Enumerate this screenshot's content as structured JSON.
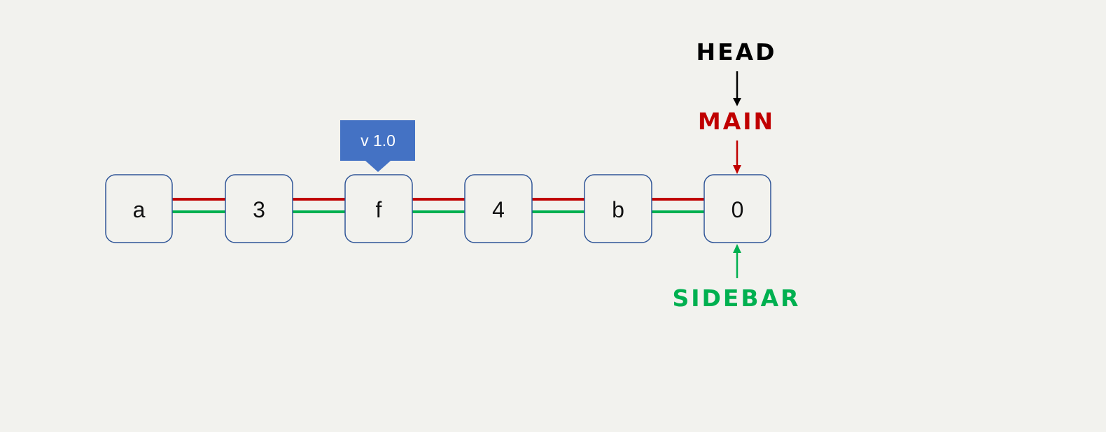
{
  "colors": {
    "background": "#f2f2ee",
    "box_border": "#2f5597",
    "main_branch": "#c00000",
    "sidebar_branch": "#00b050",
    "head": "#000000",
    "tag_fill": "#4472c4"
  },
  "commits": [
    {
      "label": "a"
    },
    {
      "label": "3"
    },
    {
      "label": "f"
    },
    {
      "label": "4"
    },
    {
      "label": "b"
    },
    {
      "label": "0"
    }
  ],
  "refs": {
    "head": "HEAD",
    "main": "MAIN",
    "sidebar": "SIDEBAR"
  },
  "tag": {
    "label": "v 1.0",
    "commit_index": 2
  },
  "pointers": {
    "main_commit_index": 5,
    "sidebar_commit_index": 5
  }
}
